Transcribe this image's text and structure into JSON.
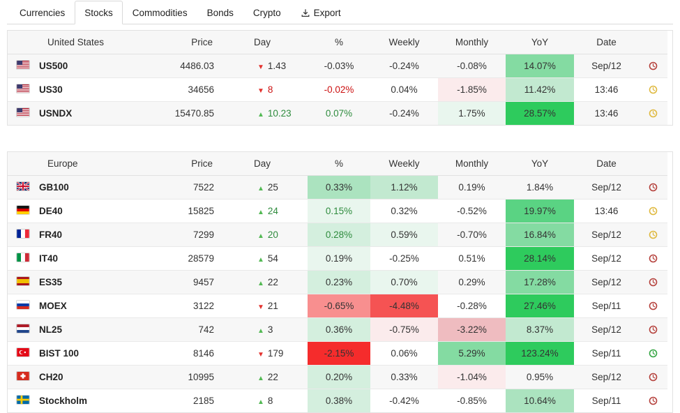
{
  "tabs": [
    {
      "label": "Currencies",
      "active": false
    },
    {
      "label": "Stocks",
      "active": true
    },
    {
      "label": "Commodities",
      "active": false
    },
    {
      "label": "Bonds",
      "active": false
    },
    {
      "label": "Crypto",
      "active": false
    },
    {
      "label": "Export",
      "active": false,
      "icon": "download-icon"
    }
  ],
  "columns": [
    "Price",
    "Day",
    "%",
    "Weekly",
    "Monthly",
    "YoY",
    "Date"
  ],
  "palette": {
    "bg": {
      "green1": "#e9f6ee",
      "green2": "#d4efde",
      "green3": "#c2e9d0",
      "green4": "#abe3bf",
      "green5": "#84dba2",
      "green6": "#5ad383",
      "green7": "#2ecb5d",
      "red1": "#fbebec",
      "red2": "#efbcc0",
      "red3": "#f88f8f",
      "red4": "#f55353",
      "red5": "#f52c2c"
    },
    "fg": {
      "neutral": "#333333",
      "red": "#cc1111",
      "green": "#2e8b3d"
    },
    "arrow": {
      "up": "#53b954",
      "down": "#e3312d"
    },
    "clock": {
      "red": "#b5413c",
      "yellow": "#dfb93f",
      "green": "#33a542"
    }
  },
  "tables": [
    {
      "region": "United States",
      "rows": [
        {
          "flag": "us",
          "symbol": "US500",
          "price": "4486.03",
          "day_dir": "down",
          "day_value": "1.43",
          "day_fg": "neutral",
          "pct": "-0.03%",
          "pct_bg": "none",
          "pct_fg": "neutral",
          "weekly": "-0.24%",
          "weekly_bg": "none",
          "monthly": "-0.08%",
          "monthly_bg": "none",
          "yoy": "14.07%",
          "yoy_bg": "green5",
          "date": "Sep/12",
          "clock": "red"
        },
        {
          "flag": "us",
          "symbol": "US30",
          "price": "34656",
          "day_dir": "down",
          "day_value": "8",
          "day_fg": "red",
          "pct": "-0.02%",
          "pct_bg": "none",
          "pct_fg": "red",
          "weekly": "0.04%",
          "weekly_bg": "none",
          "monthly": "-1.85%",
          "monthly_bg": "red1",
          "yoy": "11.42%",
          "yoy_bg": "green3",
          "date": "13:46",
          "clock": "yellow"
        },
        {
          "flag": "us",
          "symbol": "USNDX",
          "price": "15470.85",
          "day_dir": "up",
          "day_value": "10.23",
          "day_fg": "green",
          "pct": "0.07%",
          "pct_bg": "none",
          "pct_fg": "green",
          "weekly": "-0.24%",
          "weekly_bg": "none",
          "monthly": "1.75%",
          "monthly_bg": "green1",
          "yoy": "28.57%",
          "yoy_bg": "green7",
          "date": "13:46",
          "clock": "yellow"
        }
      ]
    },
    {
      "region": "Europe",
      "rows": [
        {
          "flag": "gb",
          "symbol": "GB100",
          "price": "7522",
          "day_dir": "up",
          "day_value": "25",
          "day_fg": "neutral",
          "pct": "0.33%",
          "pct_bg": "green4",
          "pct_fg": "neutral",
          "weekly": "1.12%",
          "weekly_bg": "green3",
          "monthly": "0.19%",
          "monthly_bg": "none",
          "yoy": "1.84%",
          "yoy_bg": "none",
          "date": "Sep/12",
          "clock": "red"
        },
        {
          "flag": "de",
          "symbol": "DE40",
          "price": "15825",
          "day_dir": "up",
          "day_value": "24",
          "day_fg": "green",
          "pct": "0.15%",
          "pct_bg": "green1",
          "pct_fg": "green",
          "weekly": "0.32%",
          "weekly_bg": "none",
          "monthly": "-0.52%",
          "monthly_bg": "none",
          "yoy": "19.97%",
          "yoy_bg": "green6",
          "date": "13:46",
          "clock": "yellow"
        },
        {
          "flag": "fr",
          "symbol": "FR40",
          "price": "7299",
          "day_dir": "up",
          "day_value": "20",
          "day_fg": "green",
          "pct": "0.28%",
          "pct_bg": "green2",
          "pct_fg": "green",
          "weekly": "0.59%",
          "weekly_bg": "green1",
          "monthly": "-0.70%",
          "monthly_bg": "none",
          "yoy": "16.84%",
          "yoy_bg": "green5",
          "date": "Sep/12",
          "clock": "yellow"
        },
        {
          "flag": "it",
          "symbol": "IT40",
          "price": "28579",
          "day_dir": "up",
          "day_value": "54",
          "day_fg": "neutral",
          "pct": "0.19%",
          "pct_bg": "green1",
          "pct_fg": "neutral",
          "weekly": "-0.25%",
          "weekly_bg": "none",
          "monthly": "0.51%",
          "monthly_bg": "none",
          "yoy": "28.14%",
          "yoy_bg": "green7",
          "date": "Sep/12",
          "clock": "red"
        },
        {
          "flag": "es",
          "symbol": "ES35",
          "price": "9457",
          "day_dir": "up",
          "day_value": "22",
          "day_fg": "neutral",
          "pct": "0.23%",
          "pct_bg": "green2",
          "pct_fg": "neutral",
          "weekly": "0.70%",
          "weekly_bg": "green1",
          "monthly": "0.29%",
          "monthly_bg": "none",
          "yoy": "17.28%",
          "yoy_bg": "green5",
          "date": "Sep/12",
          "clock": "red"
        },
        {
          "flag": "ru",
          "symbol": "MOEX",
          "price": "3122",
          "day_dir": "down",
          "day_value": "21",
          "day_fg": "neutral",
          "pct": "-0.65%",
          "pct_bg": "red3",
          "pct_fg": "neutral",
          "weekly": "-4.48%",
          "weekly_bg": "red4",
          "monthly": "-0.28%",
          "monthly_bg": "none",
          "yoy": "27.46%",
          "yoy_bg": "green7",
          "date": "Sep/11",
          "clock": "red"
        },
        {
          "flag": "nl",
          "symbol": "NL25",
          "price": "742",
          "day_dir": "up",
          "day_value": "3",
          "day_fg": "neutral",
          "pct": "0.36%",
          "pct_bg": "green2",
          "pct_fg": "neutral",
          "weekly": "-0.75%",
          "weekly_bg": "red1",
          "monthly": "-3.22%",
          "monthly_bg": "red2",
          "yoy": "8.37%",
          "yoy_bg": "green3",
          "date": "Sep/12",
          "clock": "red"
        },
        {
          "flag": "tr",
          "symbol": "BIST 100",
          "price": "8146",
          "day_dir": "down",
          "day_value": "179",
          "day_fg": "neutral",
          "pct": "-2.15%",
          "pct_bg": "red5",
          "pct_fg": "neutral",
          "weekly": "0.06%",
          "weekly_bg": "none",
          "monthly": "5.29%",
          "monthly_bg": "green5",
          "yoy": "123.24%",
          "yoy_bg": "green7",
          "date": "Sep/11",
          "clock": "green"
        },
        {
          "flag": "ch",
          "symbol": "CH20",
          "price": "10995",
          "day_dir": "up",
          "day_value": "22",
          "day_fg": "neutral",
          "pct": "0.20%",
          "pct_bg": "green2",
          "pct_fg": "neutral",
          "weekly": "0.33%",
          "weekly_bg": "none",
          "monthly": "-1.04%",
          "monthly_bg": "red1",
          "yoy": "0.95%",
          "yoy_bg": "none",
          "date": "Sep/12",
          "clock": "red"
        },
        {
          "flag": "se",
          "symbol": "Stockholm",
          "price": "2185",
          "day_dir": "up",
          "day_value": "8",
          "day_fg": "neutral",
          "pct": "0.38%",
          "pct_bg": "green2",
          "pct_fg": "neutral",
          "weekly": "-0.42%",
          "weekly_bg": "none",
          "monthly": "-0.85%",
          "monthly_bg": "none",
          "yoy": "10.64%",
          "yoy_bg": "green4",
          "date": "Sep/11",
          "clock": "red"
        }
      ]
    }
  ]
}
